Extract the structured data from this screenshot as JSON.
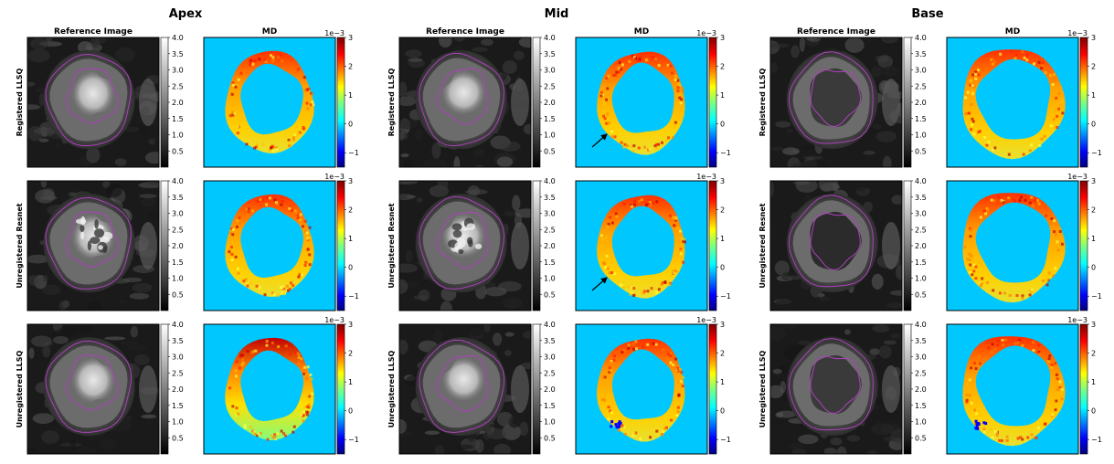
{
  "sections": [
    {
      "title": "Apex"
    },
    {
      "title": "Mid"
    },
    {
      "title": "Base"
    }
  ],
  "panel_titles": {
    "reference": "Reference Image",
    "md": "MD"
  },
  "row_labels": [
    "Registered LLSQ",
    "Unregistered Resnet",
    "Unregistered LLSQ"
  ],
  "gray_colorbar": {
    "ticks": [
      "4.0",
      "3.5",
      "3.0",
      "2.5",
      "2.0",
      "1.5",
      "1.0",
      "0.5"
    ]
  },
  "md_colorbar": {
    "exponent": "1e−3",
    "ticks": [
      "3",
      "2",
      "1",
      "0",
      "−1"
    ]
  },
  "colors": {
    "md_background": "#00c8ff",
    "contour": "#b040c0",
    "arrow": "#000000"
  },
  "arrows_visible": {
    "section": "Mid",
    "rows": [
      "Registered LLSQ",
      "Unregistered Resnet"
    ]
  }
}
